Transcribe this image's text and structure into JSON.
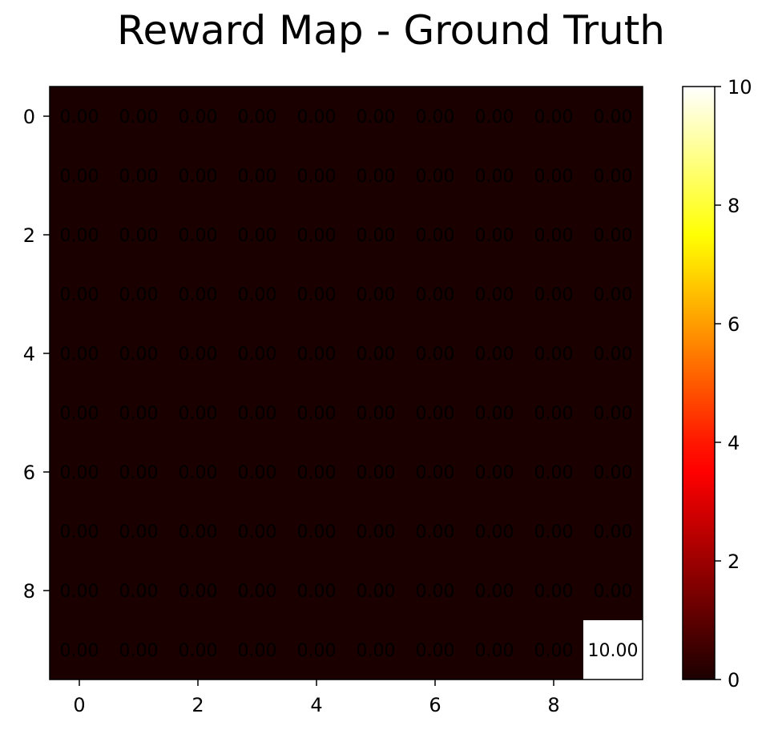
{
  "chart_data": {
    "type": "heatmap",
    "title": "Reward Map - Ground Truth",
    "xlabel": "",
    "ylabel": "",
    "rows": [
      0,
      1,
      2,
      3,
      4,
      5,
      6,
      7,
      8,
      9
    ],
    "cols": [
      0,
      1,
      2,
      3,
      4,
      5,
      6,
      7,
      8,
      9
    ],
    "x_ticks": [
      0,
      2,
      4,
      6,
      8
    ],
    "y_ticks": [
      0,
      2,
      4,
      6,
      8
    ],
    "values": [
      [
        0,
        0,
        0,
        0,
        0,
        0,
        0,
        0,
        0,
        0
      ],
      [
        0,
        0,
        0,
        0,
        0,
        0,
        0,
        0,
        0,
        0
      ],
      [
        0,
        0,
        0,
        0,
        0,
        0,
        0,
        0,
        0,
        0
      ],
      [
        0,
        0,
        0,
        0,
        0,
        0,
        0,
        0,
        0,
        0
      ],
      [
        0,
        0,
        0,
        0,
        0,
        0,
        0,
        0,
        0,
        0
      ],
      [
        0,
        0,
        0,
        0,
        0,
        0,
        0,
        0,
        0,
        0
      ],
      [
        0,
        0,
        0,
        0,
        0,
        0,
        0,
        0,
        0,
        0
      ],
      [
        0,
        0,
        0,
        0,
        0,
        0,
        0,
        0,
        0,
        0
      ],
      [
        0,
        0,
        0,
        0,
        0,
        0,
        0,
        0,
        0,
        0
      ],
      [
        0,
        0,
        0,
        0,
        0,
        0,
        0,
        0,
        0,
        10
      ]
    ],
    "value_format_decimals": 2,
    "colormap": "hot",
    "vmin": 0,
    "vmax": 10,
    "colorbar_ticks": [
      0,
      2,
      4,
      6,
      8,
      10
    ],
    "cell_label_color": "#000000",
    "frame_color": "#000000"
  }
}
